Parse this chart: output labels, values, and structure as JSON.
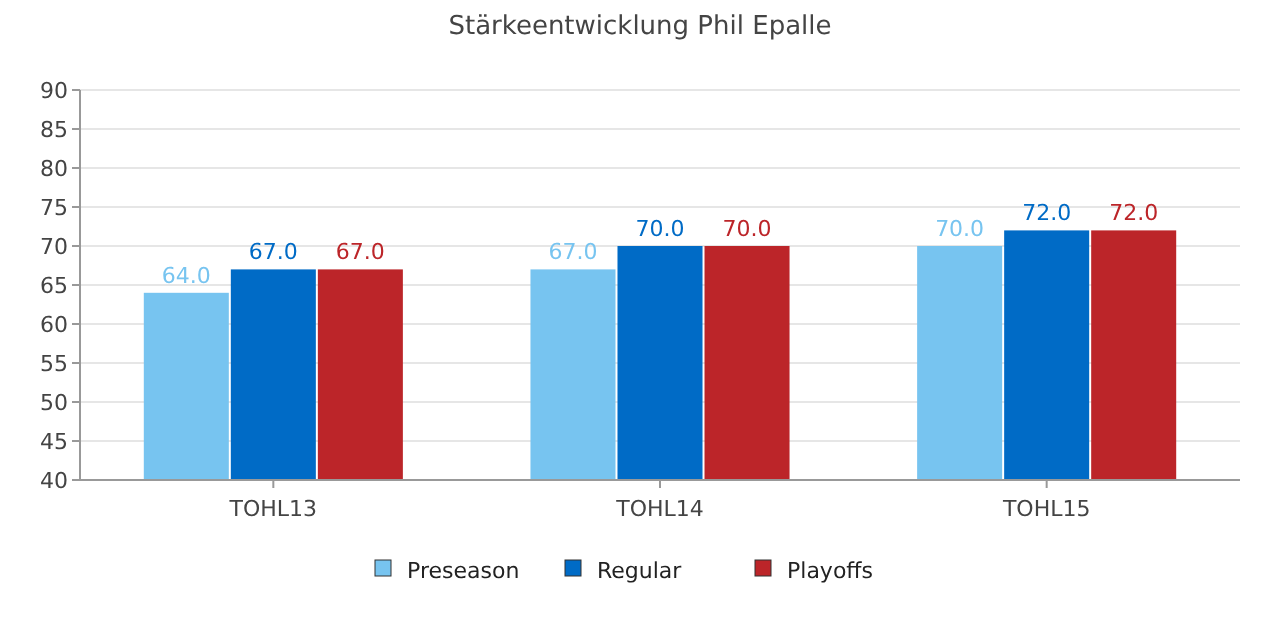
{
  "chart_data": {
    "type": "bar",
    "title": "Stärkeentwicklung Phil Epalle",
    "categories": [
      "TOHL13",
      "TOHL14",
      "TOHL15"
    ],
    "series": [
      {
        "name": "Preseason",
        "color": "#77c4f0",
        "values": [
          64.0,
          67.0,
          70.0
        ],
        "value_labels": [
          "64.0",
          "67.0",
          "70.0"
        ]
      },
      {
        "name": "Regular",
        "color": "#006bc6",
        "values": [
          67.0,
          70.0,
          72.0
        ],
        "value_labels": [
          "67.0",
          "70.0",
          "72.0"
        ]
      },
      {
        "name": "Playoffs",
        "color": "#bc2529",
        "values": [
          67.0,
          70.0,
          72.0
        ],
        "value_labels": [
          "67.0",
          "70.0",
          "72.0"
        ]
      }
    ],
    "ylim": [
      40,
      90
    ],
    "yticks": [
      40,
      45,
      50,
      55,
      60,
      65,
      70,
      75,
      80,
      85,
      90
    ],
    "grid": "y",
    "legend": "bottom"
  }
}
